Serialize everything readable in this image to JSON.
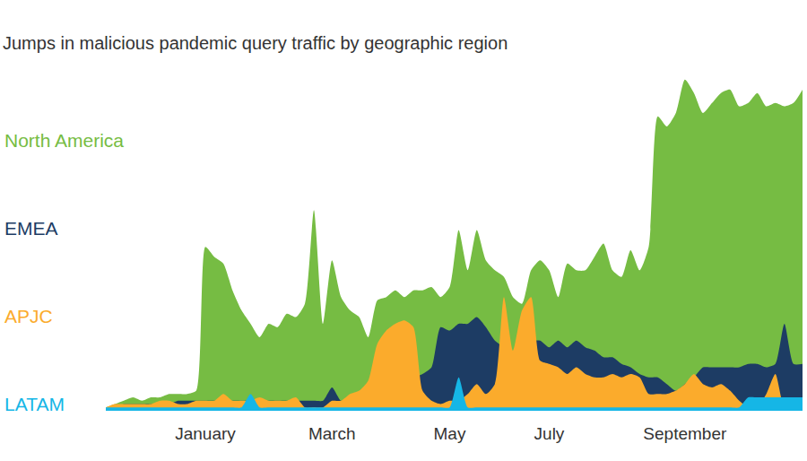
{
  "chart_data": {
    "type": "area",
    "title": "Jumps in malicious pandemic query traffic by geographic region",
    "categories": [
      null,
      null,
      null,
      null,
      null,
      null,
      null,
      null,
      null,
      null,
      null,
      "January",
      null,
      null,
      null,
      null,
      null,
      null,
      null,
      null,
      null,
      null,
      null,
      null,
      null,
      "March",
      null,
      null,
      null,
      null,
      null,
      null,
      null,
      null,
      null,
      null,
      null,
      null,
      "May",
      null,
      null,
      null,
      null,
      null,
      null,
      null,
      null,
      null,
      null,
      "July",
      null,
      null,
      null,
      null,
      null,
      null,
      null,
      null,
      null,
      null,
      null,
      null,
      null,
      null,
      "September",
      null,
      null,
      null,
      null,
      null,
      null,
      null,
      null,
      null,
      null,
      null,
      null,
      null
    ],
    "series": [
      {
        "name": "North America",
        "color": "#76bc43",
        "values": [
          1,
          2,
          3,
          4,
          3,
          4,
          4,
          5,
          5,
          5,
          6,
          49,
          46,
          44,
          36,
          30,
          26,
          22,
          26,
          25,
          29,
          28,
          32,
          60,
          26,
          45,
          34,
          30,
          28,
          22,
          33,
          34,
          36,
          34,
          36,
          36,
          37,
          34,
          37,
          54,
          42,
          54,
          45,
          42,
          40,
          34,
          32,
          42,
          45,
          42,
          34,
          44,
          42,
          42,
          46,
          50,
          42,
          40,
          48,
          42,
          49,
          88,
          85,
          89,
          99,
          95,
          89,
          92,
          95,
          96,
          91,
          92,
          95,
          91,
          92,
          91,
          92,
          96
        ]
      },
      {
        "name": "EMEA",
        "color": "#1d3c64",
        "values": [
          1,
          1,
          2,
          2,
          2,
          2,
          2,
          2,
          3,
          3,
          3,
          3,
          3,
          3,
          3,
          3,
          3,
          3,
          3,
          3,
          3,
          3,
          3,
          3,
          3,
          7,
          3,
          4,
          5,
          8,
          8,
          9,
          10,
          10,
          10,
          11,
          13,
          25,
          24,
          26,
          26,
          28,
          25,
          21,
          19,
          17,
          21,
          21,
          21,
          19,
          21,
          19,
          21,
          19,
          18,
          16,
          16,
          14,
          13,
          11,
          10,
          10,
          8,
          6,
          8,
          10,
          13,
          13,
          13,
          13,
          13,
          14,
          14,
          13,
          14,
          26,
          14,
          14
        ]
      },
      {
        "name": "APJC",
        "color": "#fbab2c",
        "values": [
          1,
          2,
          2,
          2,
          2,
          2,
          3,
          3,
          2,
          2,
          3,
          3,
          3,
          5,
          3,
          3,
          3,
          4,
          3,
          3,
          3,
          4,
          1,
          1,
          1,
          3,
          3,
          5,
          6,
          9,
          20,
          24,
          26,
          27,
          25,
          6,
          3,
          2,
          3,
          3,
          5,
          8,
          5,
          8,
          34,
          18,
          30,
          34,
          15,
          14,
          13,
          11,
          13,
          11,
          10,
          10,
          11,
          10,
          11,
          10,
          5,
          5,
          5,
          6,
          8,
          11,
          8,
          7,
          8,
          6,
          3,
          1,
          1,
          5,
          11,
          1,
          1,
          1
        ]
      },
      {
        "name": "LATAM",
        "color": "#15b6e6",
        "values": [
          1,
          1,
          1,
          1,
          1,
          1,
          1,
          1,
          1,
          1,
          1,
          1,
          1,
          1,
          1,
          1,
          5,
          1,
          1,
          1,
          1,
          1,
          1,
          1,
          1,
          1,
          1,
          1,
          1,
          1,
          1,
          1,
          1,
          1,
          1,
          1,
          1,
          1,
          1,
          10,
          1,
          1,
          1,
          1,
          1,
          1,
          1,
          1,
          1,
          1,
          1,
          1,
          1,
          1,
          1,
          1,
          1,
          1,
          1,
          1,
          1,
          1,
          1,
          1,
          1,
          1,
          1,
          1,
          1,
          1,
          1,
          4,
          4,
          4,
          4,
          4,
          4,
          4
        ]
      }
    ],
    "ylim": [
      0,
      100
    ],
    "grid": false,
    "legend": "left",
    "tick_labels": "x"
  }
}
